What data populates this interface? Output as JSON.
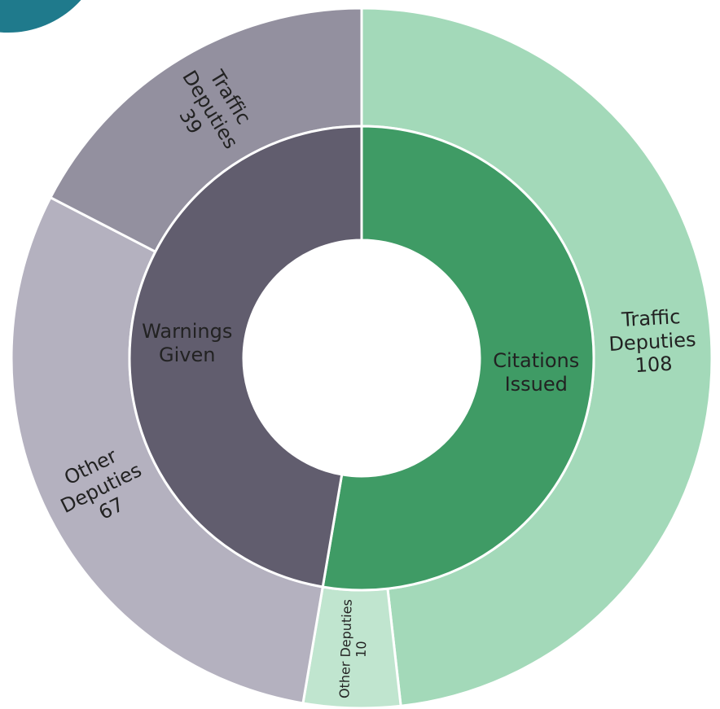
{
  "chart_data": {
    "type": "sunburst",
    "groups": [
      {
        "name": "Citations Issued",
        "color": "#3f9b65",
        "children": [
          {
            "name": "Traffic Deputies",
            "value": 108,
            "color": "#a3d9b9"
          },
          {
            "name": "Other Deputies",
            "value": 10,
            "color": "#c0e5cf"
          }
        ]
      },
      {
        "name": "Warnings Given",
        "color": "#615d6e",
        "children": [
          {
            "name": "Other Deputies",
            "value": 67,
            "color": "#b4b1bf"
          },
          {
            "name": "Traffic Deputies",
            "value": 39,
            "color": "#93909f"
          }
        ]
      }
    ]
  }
}
